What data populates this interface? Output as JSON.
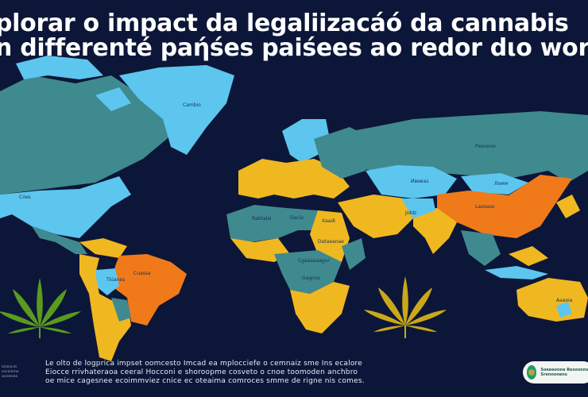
{
  "title": {
    "line1": "plorar o impact da legaliizacáó da cannabis",
    "line2": "n differenté paήśes paiśees ao redor dιo wor"
  },
  "map": {
    "labels": {
      "greenland": "Cambio",
      "north_america": "Cóes",
      "russia": "Ремзизо",
      "kazakhstan": "Ививаз",
      "mongolia": "Ломм",
      "china": "Laxoaso",
      "india": "Jiddz",
      "brazil": "Cuassa",
      "bolivia": "Tiúanes",
      "algeria": "Rabtalei",
      "libya": "Dacla",
      "egypt": "Xaadi",
      "sudan": "Dataeanae",
      "congo": "Cgaaaaaagur",
      "angola": "Gagnos",
      "australia": "Aaaoia"
    },
    "colors": {
      "background": "#0c1638",
      "teal": "#3f8a8f",
      "light_blue": "#5cc6ee",
      "yellow": "#f0b820",
      "orange": "#f07a1a",
      "leaf_green": "#5a9a1e",
      "leaf_gold": "#c9a81a"
    }
  },
  "footer": {
    "lines": [
      "Le olto de logprica impset oomcesto Imcad ea mplocciefe o cemnaiz sme Ins ecalore",
      "Eiocce rrivhateraoa ceeral Hocconi e shoroopme cosveto o cnoe toomoden anchbro",
      "oe mice cagesnee ecoimmviez cnice ec oteaima comroces smme de rigne nis comes."
    ],
    "side_note": "Ioiaiacot socaiemo aceeeiao",
    "badge": "Soeeeonne Besoonnse Srennonens"
  }
}
